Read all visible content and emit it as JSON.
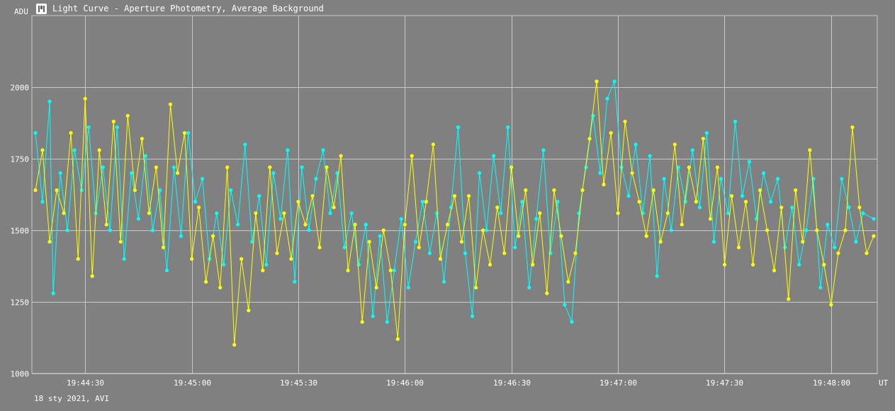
{
  "window": {
    "title": "Light Curve - Aperture Photometry, Average Background",
    "icon": "app-logo-icon"
  },
  "footer": {
    "text": "18 sty 2021, AVI"
  },
  "colors": {
    "background": "#808080",
    "grid": "#c8c8c8",
    "series1": "#00ffff",
    "series2": "#ffff00"
  },
  "chart_data": {
    "type": "line",
    "title": "Light Curve - Aperture Photometry, Average Background",
    "ylabel": "ADU",
    "xlabel": "UT",
    "xlim": [
      "19:44:15",
      "19:48:13"
    ],
    "ylim": [
      1000,
      2250
    ],
    "yticks": [
      1000,
      1250,
      1500,
      1750,
      2000
    ],
    "xticks": [
      "19:44:30",
      "19:45:00",
      "19:45:30",
      "19:46:00",
      "19:46:30",
      "19:47:00",
      "19:47:30",
      "19:48:00"
    ],
    "grid": true,
    "markers": true,
    "series": [
      {
        "color": "#00ffff",
        "points": [
          [
            "19:44:16",
            1840
          ],
          [
            "19:44:18",
            1600
          ],
          [
            "19:44:20",
            1950
          ],
          [
            "19:44:21",
            1280
          ],
          [
            "19:44:23",
            1700
          ],
          [
            "19:44:25",
            1500
          ],
          [
            "19:44:27",
            1780
          ],
          [
            "19:44:29",
            1640
          ],
          [
            "19:44:31",
            1860
          ],
          [
            "19:44:33",
            1560
          ],
          [
            "19:44:35",
            1720
          ],
          [
            "19:44:37",
            1500
          ],
          [
            "19:44:39",
            1860
          ],
          [
            "19:44:41",
            1400
          ],
          [
            "19:44:43",
            1700
          ],
          [
            "19:44:45",
            1540
          ],
          [
            "19:44:47",
            1760
          ],
          [
            "19:44:49",
            1500
          ],
          [
            "19:44:51",
            1640
          ],
          [
            "19:44:53",
            1360
          ],
          [
            "19:44:55",
            1720
          ],
          [
            "19:44:57",
            1480
          ],
          [
            "19:44:59",
            1840
          ],
          [
            "19:45:01",
            1600
          ],
          [
            "19:45:03",
            1680
          ],
          [
            "19:45:05",
            1400
          ],
          [
            "19:45:07",
            1560
          ],
          [
            "19:45:09",
            1380
          ],
          [
            "19:45:11",
            1640
          ],
          [
            "19:45:13",
            1520
          ],
          [
            "19:45:15",
            1800
          ],
          [
            "19:45:17",
            1460
          ],
          [
            "19:45:19",
            1620
          ],
          [
            "19:45:21",
            1380
          ],
          [
            "19:45:23",
            1700
          ],
          [
            "19:45:25",
            1540
          ],
          [
            "19:45:27",
            1780
          ],
          [
            "19:45:29",
            1320
          ],
          [
            "19:45:31",
            1720
          ],
          [
            "19:45:33",
            1500
          ],
          [
            "19:45:35",
            1680
          ],
          [
            "19:45:37",
            1780
          ],
          [
            "19:45:39",
            1560
          ],
          [
            "19:45:41",
            1700
          ],
          [
            "19:45:43",
            1440
          ],
          [
            "19:45:45",
            1560
          ],
          [
            "19:45:47",
            1380
          ],
          [
            "19:45:49",
            1520
          ],
          [
            "19:45:51",
            1200
          ],
          [
            "19:45:53",
            1480
          ],
          [
            "19:45:55",
            1180
          ],
          [
            "19:45:57",
            1360
          ],
          [
            "19:45:59",
            1540
          ],
          [
            "19:46:01",
            1300
          ],
          [
            "19:46:03",
            1460
          ],
          [
            "19:46:05",
            1600
          ],
          [
            "19:46:07",
            1420
          ],
          [
            "19:46:09",
            1560
          ],
          [
            "19:46:11",
            1320
          ],
          [
            "19:46:13",
            1580
          ],
          [
            "19:46:15",
            1860
          ],
          [
            "19:46:17",
            1420
          ],
          [
            "19:46:19",
            1200
          ],
          [
            "19:46:21",
            1700
          ],
          [
            "19:46:23",
            1500
          ],
          [
            "19:46:25",
            1760
          ],
          [
            "19:46:27",
            1560
          ],
          [
            "19:46:29",
            1860
          ],
          [
            "19:46:31",
            1440
          ],
          [
            "19:46:33",
            1600
          ],
          [
            "19:46:35",
            1300
          ],
          [
            "19:46:37",
            1540
          ],
          [
            "19:46:39",
            1780
          ],
          [
            "19:46:41",
            1420
          ],
          [
            "19:46:43",
            1600
          ],
          [
            "19:46:45",
            1240
          ],
          [
            "19:46:47",
            1180
          ],
          [
            "19:46:49",
            1560
          ],
          [
            "19:46:51",
            1720
          ],
          [
            "19:46:53",
            1900
          ],
          [
            "19:46:55",
            1700
          ],
          [
            "19:46:57",
            1960
          ],
          [
            "19:46:59",
            2020
          ],
          [
            "19:47:01",
            1720
          ],
          [
            "19:47:03",
            1620
          ],
          [
            "19:47:05",
            1800
          ],
          [
            "19:47:07",
            1560
          ],
          [
            "19:47:09",
            1760
          ],
          [
            "19:47:11",
            1340
          ],
          [
            "19:47:13",
            1680
          ],
          [
            "19:47:15",
            1500
          ],
          [
            "19:47:17",
            1720
          ],
          [
            "19:47:19",
            1600
          ],
          [
            "19:47:21",
            1780
          ],
          [
            "19:47:23",
            1580
          ],
          [
            "19:47:25",
            1840
          ],
          [
            "19:47:27",
            1460
          ],
          [
            "19:47:29",
            1680
          ],
          [
            "19:47:31",
            1560
          ],
          [
            "19:47:33",
            1880
          ],
          [
            "19:47:35",
            1620
          ],
          [
            "19:47:37",
            1740
          ],
          [
            "19:47:39",
            1540
          ],
          [
            "19:47:41",
            1700
          ],
          [
            "19:47:43",
            1600
          ],
          [
            "19:47:45",
            1680
          ],
          [
            "19:47:47",
            1440
          ],
          [
            "19:47:49",
            1580
          ],
          [
            "19:47:51",
            1380
          ],
          [
            "19:47:53",
            1500
          ],
          [
            "19:47:55",
            1680
          ],
          [
            "19:47:57",
            1300
          ],
          [
            "19:47:59",
            1520
          ],
          [
            "19:48:01",
            1440
          ],
          [
            "19:48:03",
            1680
          ],
          [
            "19:48:05",
            1580
          ],
          [
            "19:48:07",
            1460
          ],
          [
            "19:48:09",
            1560
          ],
          [
            "19:48:12",
            1540
          ]
        ]
      },
      {
        "color": "#ffff00",
        "points": [
          [
            "19:44:16",
            1640
          ],
          [
            "19:44:18",
            1780
          ],
          [
            "19:44:20",
            1460
          ],
          [
            "19:44:22",
            1640
          ],
          [
            "19:44:24",
            1560
          ],
          [
            "19:44:26",
            1840
          ],
          [
            "19:44:28",
            1400
          ],
          [
            "19:44:30",
            1960
          ],
          [
            "19:44:32",
            1340
          ],
          [
            "19:44:34",
            1780
          ],
          [
            "19:44:36",
            1520
          ],
          [
            "19:44:38",
            1880
          ],
          [
            "19:44:40",
            1460
          ],
          [
            "19:44:42",
            1900
          ],
          [
            "19:44:44",
            1640
          ],
          [
            "19:44:46",
            1820
          ],
          [
            "19:44:48",
            1560
          ],
          [
            "19:44:50",
            1720
          ],
          [
            "19:44:52",
            1440
          ],
          [
            "19:44:54",
            1940
          ],
          [
            "19:44:56",
            1700
          ],
          [
            "19:44:58",
            1840
          ],
          [
            "19:45:00",
            1400
          ],
          [
            "19:45:02",
            1580
          ],
          [
            "19:45:04",
            1320
          ],
          [
            "19:45:06",
            1480
          ],
          [
            "19:45:08",
            1300
          ],
          [
            "19:45:10",
            1720
          ],
          [
            "19:45:12",
            1100
          ],
          [
            "19:45:14",
            1400
          ],
          [
            "19:45:16",
            1220
          ],
          [
            "19:45:18",
            1560
          ],
          [
            "19:45:20",
            1360
          ],
          [
            "19:45:22",
            1720
          ],
          [
            "19:45:24",
            1420
          ],
          [
            "19:45:26",
            1560
          ],
          [
            "19:45:28",
            1400
          ],
          [
            "19:45:30",
            1600
          ],
          [
            "19:45:32",
            1520
          ],
          [
            "19:45:34",
            1620
          ],
          [
            "19:45:36",
            1440
          ],
          [
            "19:45:38",
            1720
          ],
          [
            "19:45:40",
            1580
          ],
          [
            "19:45:42",
            1760
          ],
          [
            "19:45:44",
            1360
          ],
          [
            "19:45:46",
            1520
          ],
          [
            "19:45:48",
            1180
          ],
          [
            "19:45:50",
            1460
          ],
          [
            "19:45:52",
            1300
          ],
          [
            "19:45:54",
            1500
          ],
          [
            "19:45:56",
            1360
          ],
          [
            "19:45:58",
            1120
          ],
          [
            "19:46:00",
            1520
          ],
          [
            "19:46:02",
            1760
          ],
          [
            "19:46:04",
            1440
          ],
          [
            "19:46:06",
            1600
          ],
          [
            "19:46:08",
            1800
          ],
          [
            "19:46:10",
            1400
          ],
          [
            "19:46:12",
            1520
          ],
          [
            "19:46:14",
            1620
          ],
          [
            "19:46:16",
            1460
          ],
          [
            "19:46:18",
            1620
          ],
          [
            "19:46:20",
            1300
          ],
          [
            "19:46:22",
            1500
          ],
          [
            "19:46:24",
            1380
          ],
          [
            "19:46:26",
            1580
          ],
          [
            "19:46:28",
            1420
          ],
          [
            "19:46:30",
            1720
          ],
          [
            "19:46:32",
            1480
          ],
          [
            "19:46:34",
            1640
          ],
          [
            "19:46:36",
            1380
          ],
          [
            "19:46:38",
            1560
          ],
          [
            "19:46:40",
            1280
          ],
          [
            "19:46:42",
            1640
          ],
          [
            "19:46:44",
            1480
          ],
          [
            "19:46:46",
            1320
          ],
          [
            "19:46:48",
            1420
          ],
          [
            "19:46:50",
            1640
          ],
          [
            "19:46:52",
            1820
          ],
          [
            "19:46:54",
            2020
          ],
          [
            "19:46:56",
            1660
          ],
          [
            "19:46:58",
            1840
          ],
          [
            "19:47:00",
            1560
          ],
          [
            "19:47:02",
            1880
          ],
          [
            "19:47:04",
            1700
          ],
          [
            "19:47:06",
            1600
          ],
          [
            "19:47:08",
            1480
          ],
          [
            "19:47:10",
            1640
          ],
          [
            "19:47:12",
            1460
          ],
          [
            "19:47:14",
            1560
          ],
          [
            "19:47:16",
            1800
          ],
          [
            "19:47:18",
            1520
          ],
          [
            "19:47:20",
            1720
          ],
          [
            "19:47:22",
            1600
          ],
          [
            "19:47:24",
            1820
          ],
          [
            "19:47:26",
            1540
          ],
          [
            "19:47:28",
            1720
          ],
          [
            "19:47:30",
            1380
          ],
          [
            "19:47:32",
            1620
          ],
          [
            "19:47:34",
            1440
          ],
          [
            "19:47:36",
            1600
          ],
          [
            "19:47:38",
            1380
          ],
          [
            "19:47:40",
            1640
          ],
          [
            "19:47:42",
            1500
          ],
          [
            "19:47:44",
            1360
          ],
          [
            "19:47:46",
            1580
          ],
          [
            "19:47:48",
            1260
          ],
          [
            "19:47:50",
            1640
          ],
          [
            "19:47:52",
            1460
          ],
          [
            "19:47:54",
            1780
          ],
          [
            "19:47:56",
            1500
          ],
          [
            "19:47:58",
            1380
          ],
          [
            "19:48:00",
            1240
          ],
          [
            "19:48:02",
            1420
          ],
          [
            "19:48:04",
            1500
          ],
          [
            "19:48:06",
            1860
          ],
          [
            "19:48:08",
            1580
          ],
          [
            "19:48:10",
            1420
          ],
          [
            "19:48:12",
            1480
          ]
        ]
      }
    ]
  }
}
